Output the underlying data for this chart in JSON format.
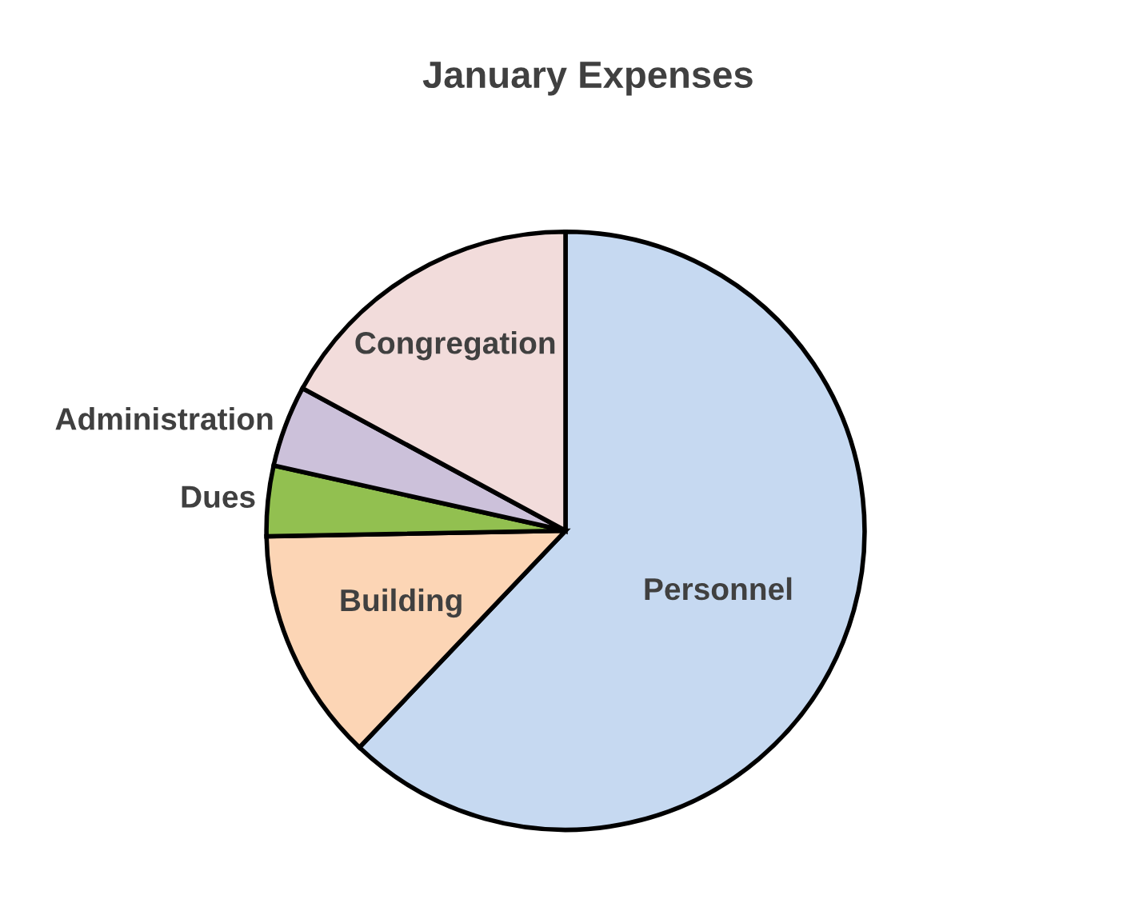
{
  "chart_data": {
    "type": "pie",
    "title": "January Expenses",
    "categories": [
      "Personnel",
      "Building",
      "Dues",
      "Administration",
      "Congregation"
    ],
    "values": [
      62.1,
      12.6,
      3.8,
      4.4,
      17.1
    ],
    "colors": [
      "#c6d9f1",
      "#fcd5b5",
      "#92c050",
      "#ccc1da",
      "#f2dcdb"
    ],
    "legend": false
  }
}
